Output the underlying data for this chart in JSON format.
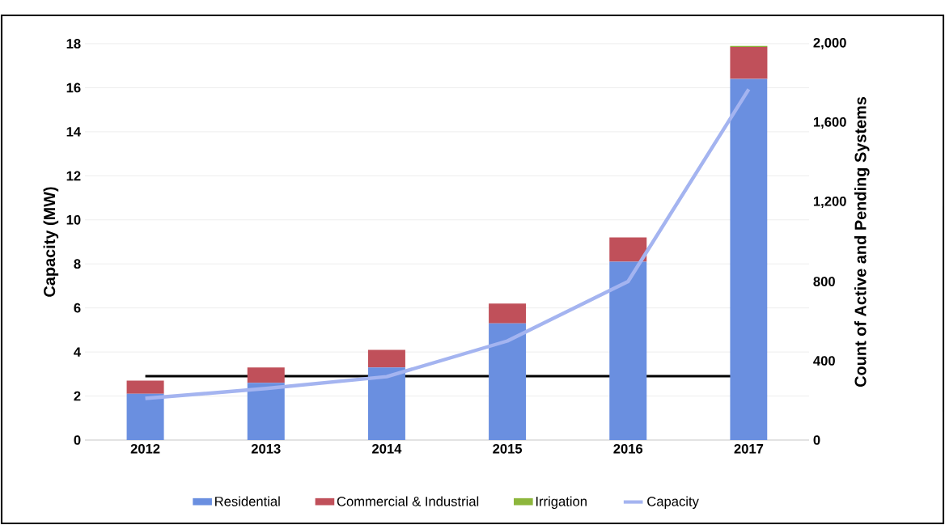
{
  "chart_data": {
    "type": "bar",
    "stacked": true,
    "categories": [
      "2012",
      "2013",
      "2014",
      "2015",
      "2016",
      "2017"
    ],
    "series": [
      {
        "name": "Residential",
        "color": "#6a8fe0",
        "values": [
          2.1,
          2.6,
          3.3,
          5.3,
          8.1,
          16.4
        ]
      },
      {
        "name": "Commercial & Industrial",
        "color": "#c0505a",
        "values": [
          0.6,
          0.7,
          0.8,
          0.9,
          1.1,
          1.45
        ]
      },
      {
        "name": "Irrigation",
        "color": "#8db63c",
        "values": [
          0,
          0,
          0,
          0,
          0,
          0.05
        ]
      },
      {
        "name": "Capacity",
        "type": "line",
        "axis": "y2",
        "color": "#a4b4f0",
        "values": [
          210,
          260,
          320,
          500,
          800,
          1770
        ]
      }
    ],
    "ylabel": "Capacity (MW)",
    "y2label": "Count of Active and Pending Systems",
    "ylim": [
      0,
      18
    ],
    "yticks": [
      0,
      2,
      4,
      6,
      8,
      10,
      12,
      14,
      16,
      18
    ],
    "y2lim": [
      0,
      2000
    ],
    "y2ticks": [
      0,
      400,
      800,
      {
        "value": 1200,
        "label": "1,200"
      },
      {
        "value": 1600,
        "label": "1,600"
      },
      {
        "value": 2000,
        "label": "2,000"
      }
    ],
    "ref_lines": [
      {
        "axis": "y",
        "value": 2.9,
        "color": "#000000"
      }
    ],
    "grid": "y",
    "legend": "bottom"
  }
}
